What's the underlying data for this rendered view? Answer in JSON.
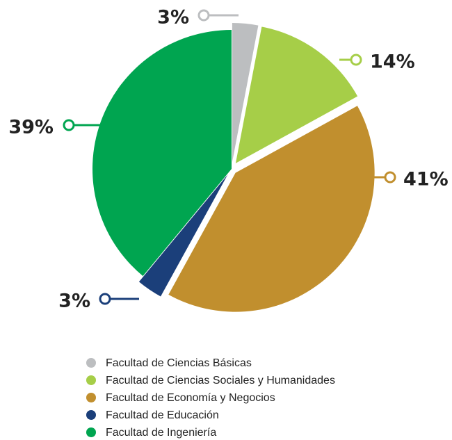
{
  "chart_data": {
    "type": "pie",
    "categories": [
      "Facultad de Ciencias Básicas",
      "Facultad de Ciencias Sociales y Humanidades",
      "Facultad de Economía y Negocios",
      "Facultad de Educación",
      "Facultad de Ingeniería"
    ],
    "values": [
      3,
      14,
      41,
      3,
      39
    ],
    "value_labels": [
      "3%",
      "14%",
      "41%",
      "3%",
      "39%"
    ],
    "colors": [
      "#bcbec0",
      "#a6ce48",
      "#c18f2e",
      "#1b3f7a",
      "#00a550"
    ],
    "legend": "bottom"
  }
}
